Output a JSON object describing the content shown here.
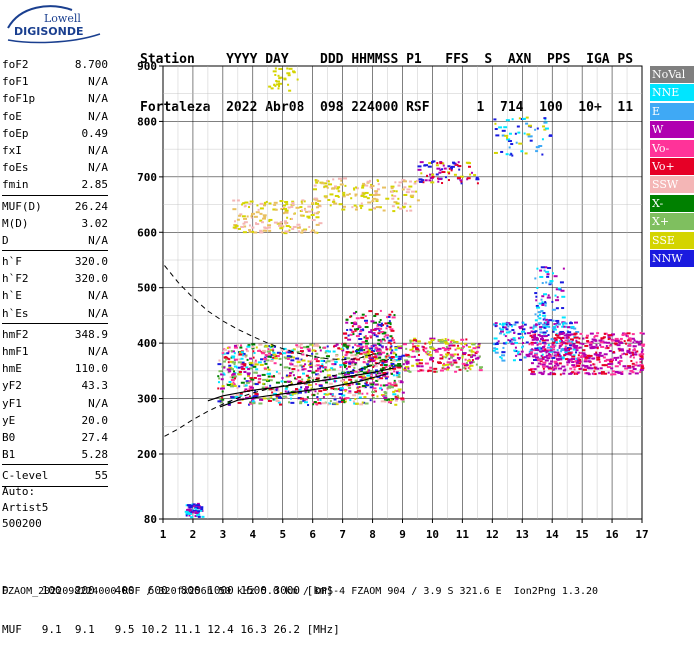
{
  "logo": {
    "brand_top": "Lowell",
    "brand_bottom": "DIGISONDE"
  },
  "header": {
    "line1": "Station    YYYY DAY    DDD HHMMSS P1   FFS  S  AXN  PPS  IGA PS",
    "line2": "Fortaleza  2022 Abr08  098 224000 RSF      1  714  100  10+  11"
  },
  "params_group1": [
    {
      "label": "foF2",
      "value": "8.700"
    },
    {
      "label": "foF1",
      "value": "N/A"
    },
    {
      "label": "foF1p",
      "value": "N/A"
    },
    {
      "label": "foE",
      "value": "N/A"
    },
    {
      "label": "foEp",
      "value": "0.49"
    },
    {
      "label": "fxI",
      "value": "N/A"
    },
    {
      "label": "foEs",
      "value": "N/A"
    },
    {
      "label": "fmin",
      "value": "2.85"
    }
  ],
  "params_group2": [
    {
      "label": "MUF(D)",
      "value": "26.24"
    },
    {
      "label": "M(D)",
      "value": "3.02"
    },
    {
      "label": "D",
      "value": "N/A"
    }
  ],
  "params_group3": [
    {
      "label": "h`F",
      "value": "320.0"
    },
    {
      "label": "h`F2",
      "value": "320.0"
    },
    {
      "label": "h`E",
      "value": "N/A"
    },
    {
      "label": "h`Es",
      "value": "N/A"
    }
  ],
  "params_group4": [
    {
      "label": "hmF2",
      "value": "348.9"
    },
    {
      "label": "hmF1",
      "value": "N/A"
    },
    {
      "label": "hmE",
      "value": "110.0"
    },
    {
      "label": "yF2",
      "value": "43.3"
    },
    {
      "label": "yF1",
      "value": "N/A"
    },
    {
      "label": "yE",
      "value": "20.0"
    },
    {
      "label": "B0",
      "value": "27.4"
    },
    {
      "label": "B1",
      "value": "5.28"
    }
  ],
  "params_group5": [
    {
      "label": "C-level",
      "value": "55"
    }
  ],
  "auto": {
    "line1": "Auto:",
    "line2": "Artist5",
    "line3": "500200"
  },
  "legend": [
    {
      "label": "NoVal",
      "color": "#7f7f7f"
    },
    {
      "label": "NNE",
      "color": "#00e5ff"
    },
    {
      "label": "E",
      "color": "#3fa9f5"
    },
    {
      "label": "W",
      "color": "#b000b0"
    },
    {
      "label": "Vo-",
      "color": "#ff3399"
    },
    {
      "label": "Vo+",
      "color": "#e60026"
    },
    {
      "label": "SSW",
      "color": "#f4b6b6"
    },
    {
      "label": "X-",
      "color": "#008000"
    },
    {
      "label": "X+",
      "color": "#7fbf5f"
    },
    {
      "label": "SSE",
      "color": "#d4d400"
    },
    {
      "label": "NNW",
      "color": "#1a1adf"
    }
  ],
  "bottom": {
    "line1": "D     100  200   400  600  800 1000 1500 3000 [km]",
    "line2": "MUF   9.1  9.1   9.5 10.2 11.1 12.4 16.3 26.2 [MHz]"
  },
  "footer": "FZAOM_2022098224000.RSF / 320fx256h 50 kHz 5.0 km / DPS-4 FZAOM 904 / 3.9 S 321.6 E  Ion2Png 1.3.20",
  "chart_data": {
    "type": "scatter",
    "xlim": [
      1,
      17
    ],
    "ylim": [
      80,
      900
    ],
    "x_ticks": [
      1,
      2,
      3,
      4,
      5,
      6,
      7,
      8,
      9,
      10,
      11,
      12,
      13,
      14,
      15,
      16,
      17
    ],
    "y_ticks": [
      80,
      200,
      300,
      400,
      500,
      600,
      700,
      800,
      900
    ],
    "grid": true,
    "legend_position": "right",
    "traces": {
      "main_solid": [
        [
          2.5,
          296
        ],
        [
          3,
          305
        ],
        [
          4,
          315
        ],
        [
          5,
          322
        ],
        [
          6,
          330
        ],
        [
          7,
          338
        ],
        [
          8,
          347
        ],
        [
          8.7,
          355
        ]
      ],
      "lower_solid": [
        [
          2.9,
          285
        ],
        [
          3.5,
          297
        ],
        [
          4.5,
          305
        ],
        [
          5.5,
          312
        ],
        [
          6.5,
          320
        ],
        [
          7.5,
          330
        ],
        [
          8.5,
          345
        ]
      ],
      "dashed_upper": [
        [
          1.05,
          540
        ],
        [
          1.5,
          510
        ],
        [
          2,
          482
        ],
        [
          2.5,
          458
        ],
        [
          3,
          440
        ],
        [
          3.5,
          425
        ],
        [
          4,
          412
        ],
        [
          4.5,
          400
        ],
        [
          5,
          390
        ],
        [
          5.5,
          382
        ],
        [
          6,
          376
        ],
        [
          6.5,
          372
        ],
        [
          7,
          370
        ],
        [
          7.5,
          372
        ],
        [
          8,
          380
        ]
      ],
      "dashed_lower": [
        [
          1.05,
          232
        ],
        [
          1.5,
          245
        ],
        [
          2,
          262
        ],
        [
          2.5,
          277
        ],
        [
          3,
          290
        ],
        [
          3.5,
          301
        ],
        [
          4,
          310
        ],
        [
          4.5,
          317
        ],
        [
          5,
          323
        ],
        [
          5.5,
          328
        ],
        [
          6,
          333
        ],
        [
          6.5,
          339
        ],
        [
          7,
          345
        ],
        [
          7.5,
          352
        ],
        [
          8,
          360
        ],
        [
          8.6,
          372
        ]
      ]
    },
    "echo_regions": [
      {
        "x": [
          1.7,
          2.3
        ],
        "y": [
          85,
          110
        ],
        "colors": [
          "#1a1adf",
          "#00e5ff",
          "#b000b0"
        ],
        "n": 60
      },
      {
        "x": [
          2.8,
          9.0
        ],
        "y": [
          290,
          400
        ],
        "colors": [
          "#ff3399",
          "#e60026",
          "#b000b0",
          "#00e5ff",
          "#008000",
          "#d4d400",
          "#1a1adf",
          "#f4b6b6",
          "#7fbf5f"
        ],
        "n": 900
      },
      {
        "x": [
          7.0,
          8.7
        ],
        "y": [
          340,
          460
        ],
        "colors": [
          "#ff3399",
          "#e60026",
          "#b000b0",
          "#1a1adf",
          "#008000"
        ],
        "n": 220
      },
      {
        "x": [
          9.0,
          11.6
        ],
        "y": [
          350,
          410
        ],
        "colors": [
          "#d4d400",
          "#ff3399",
          "#e60026",
          "#b000b0",
          "#7fbf5f"
        ],
        "n": 220
      },
      {
        "x": [
          12.0,
          14.8
        ],
        "y": [
          370,
          440
        ],
        "colors": [
          "#00e5ff",
          "#3fa9f5",
          "#1a1adf",
          "#b000b0"
        ],
        "n": 220
      },
      {
        "x": [
          13.4,
          14.4
        ],
        "y": [
          420,
          540
        ],
        "colors": [
          "#1a1adf",
          "#3fa9f5",
          "#00e5ff",
          "#b000b0"
        ],
        "n": 90
      },
      {
        "x": [
          13.2,
          17.0
        ],
        "y": [
          345,
          420
        ],
        "colors": [
          "#b000b0",
          "#ff3399",
          "#e60026",
          "#b000b0"
        ],
        "n": 480
      },
      {
        "x": [
          3.3,
          6.2
        ],
        "y": [
          600,
          660
        ],
        "colors": [
          "#d4d400",
          "#f4b6b6",
          "#e8c060"
        ],
        "n": 160
      },
      {
        "x": [
          6.0,
          9.5
        ],
        "y": [
          640,
          700
        ],
        "colors": [
          "#d4d400",
          "#f4b6b6",
          "#e8c060"
        ],
        "n": 160
      },
      {
        "x": [
          9.5,
          11.5
        ],
        "y": [
          690,
          730
        ],
        "colors": [
          "#d4d400",
          "#b000b0",
          "#1a1adf",
          "#e60026"
        ],
        "n": 80
      },
      {
        "x": [
          12.0,
          13.9
        ],
        "y": [
          740,
          810
        ],
        "colors": [
          "#d4d400",
          "#00e5ff",
          "#3fa9f5",
          "#1a1adf"
        ],
        "n": 60
      },
      {
        "x": [
          4.5,
          5.5
        ],
        "y": [
          855,
          900
        ],
        "colors": [
          "#d4d400"
        ],
        "n": 30
      }
    ]
  }
}
